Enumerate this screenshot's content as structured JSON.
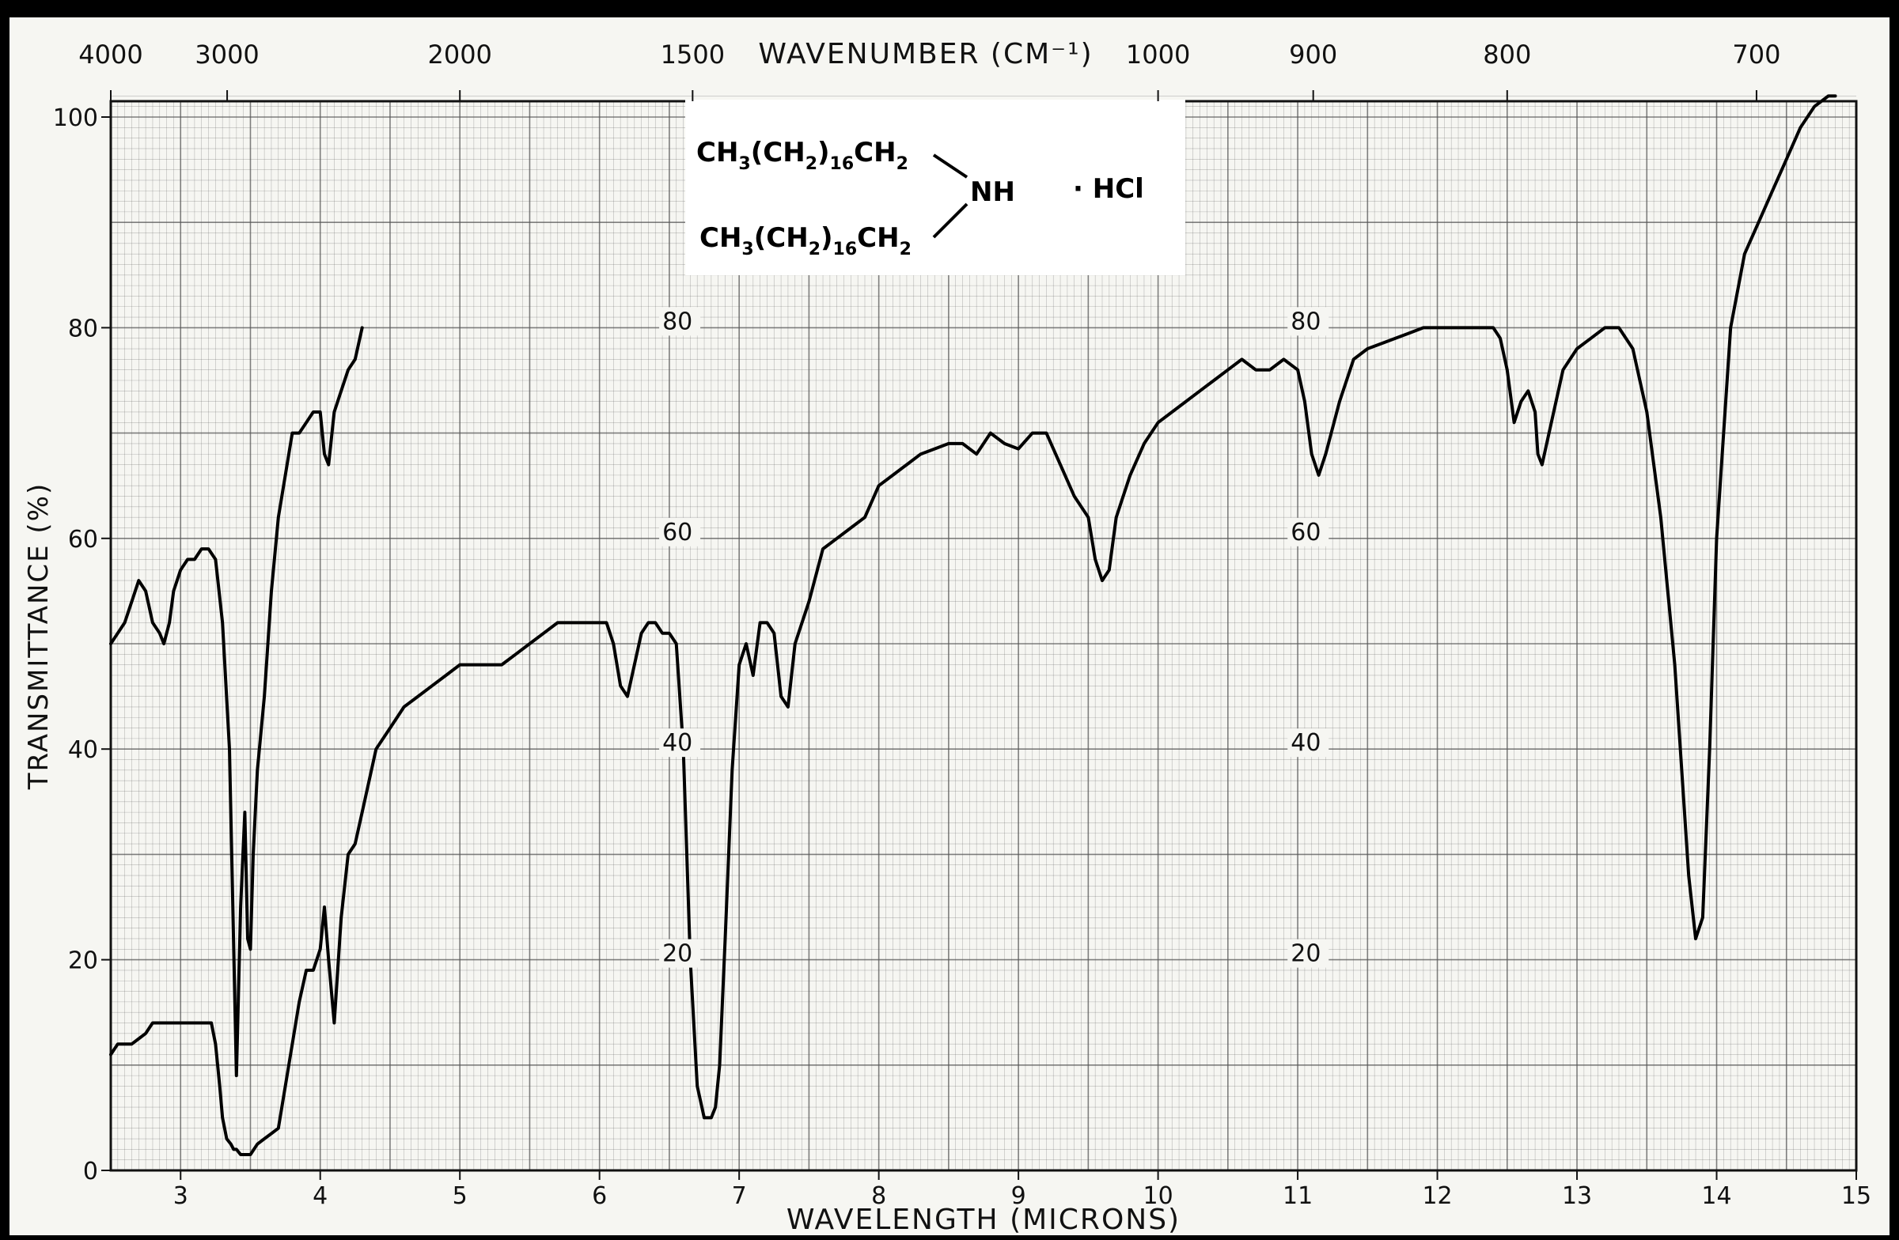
{
  "chart_data": {
    "type": "line",
    "title": "",
    "xlabel": "WAVELENGTH (MICRONS)",
    "x2label": "WAVENUMBER (CM⁻¹)",
    "ylabel": "TRANSMITTANCE (%)",
    "xlim": [
      2.5,
      15
    ],
    "ylim": [
      0,
      102
    ],
    "x_ticks": [
      3,
      4,
      5,
      6,
      7,
      8,
      9,
      10,
      11,
      12,
      13,
      14,
      15
    ],
    "x_tick_labels": [
      "3",
      "4",
      "5",
      "6",
      "7",
      "8",
      "9",
      "10",
      "11",
      "12",
      "13",
      "14",
      "15"
    ],
    "y_ticks": [
      0,
      20,
      40,
      60,
      80,
      100
    ],
    "y_tick_labels": [
      "0",
      "20",
      "40",
      "60",
      "80",
      "100"
    ],
    "wavenumber_ticks": [
      4000,
      3000,
      2000,
      1500,
      1000,
      900,
      800,
      700
    ],
    "wavenumber_tick_labels": [
      "4000",
      "3000",
      "2000",
      "1500",
      "1000",
      "900",
      "800",
      "700"
    ],
    "inner_labels": [
      {
        "x": 6.45,
        "y": 80,
        "text": "80"
      },
      {
        "x": 6.45,
        "y": 60,
        "text": "60"
      },
      {
        "x": 6.45,
        "y": 40,
        "text": "40"
      },
      {
        "x": 6.45,
        "y": 20,
        "text": "20"
      },
      {
        "x": 10.95,
        "y": 80,
        "text": "80"
      },
      {
        "x": 10.95,
        "y": 60,
        "text": "60"
      },
      {
        "x": 10.95,
        "y": 40,
        "text": "40"
      },
      {
        "x": 10.95,
        "y": 20,
        "text": "20"
      }
    ],
    "grid": true,
    "line_color": "#000000",
    "grid_color": "#555555",
    "series": [
      {
        "x": [
          2.5,
          2.55,
          2.6,
          2.65,
          2.7,
          2.75,
          2.8,
          2.85,
          2.9,
          2.95,
          3.0,
          3.05,
          3.1,
          3.15,
          3.2,
          3.22,
          3.25,
          3.28,
          3.3,
          3.33,
          3.36,
          3.38,
          3.4,
          3.43,
          3.46,
          3.5,
          3.55,
          3.6,
          3.65,
          3.7,
          3.75,
          3.8,
          3.85,
          3.9,
          3.95,
          4.0,
          4.03,
          4.06,
          4.1,
          4.15,
          4.2,
          4.25,
          4.3,
          4.35,
          4.4,
          4.5,
          4.6,
          4.7,
          4.8,
          4.9,
          5.0,
          5.1,
          5.2,
          5.3,
          5.4,
          5.5,
          5.6,
          5.7,
          5.8,
          5.9,
          6.0,
          6.05,
          6.1,
          6.15,
          6.2,
          6.25,
          6.3,
          6.35,
          6.4,
          6.45,
          6.5,
          6.55,
          6.6,
          6.65,
          6.7,
          6.75,
          6.8,
          6.83,
          6.86,
          6.9,
          6.95,
          7.0,
          7.05,
          7.1,
          7.15,
          7.2,
          7.25,
          7.3,
          7.35,
          7.4,
          7.5,
          7.6,
          7.7,
          7.8,
          7.9,
          8.0,
          8.1,
          8.2,
          8.3,
          8.4,
          8.5,
          8.6,
          8.7,
          8.8,
          8.9,
          9.0,
          9.1,
          9.2,
          9.3,
          9.4,
          9.5,
          9.55,
          9.6,
          9.65,
          9.7,
          9.8,
          9.9,
          10.0,
          10.1,
          10.2,
          10.3,
          10.4,
          10.5,
          10.6,
          10.7,
          10.8,
          10.9,
          11.0,
          11.05,
          11.1,
          11.15,
          11.2,
          11.3,
          11.4,
          11.5,
          11.6,
          11.7,
          11.8,
          11.9,
          12.0,
          12.1,
          12.2,
          12.3,
          12.4,
          12.45,
          12.5,
          12.55,
          12.6,
          12.65,
          12.7,
          12.72,
          12.75,
          12.8,
          12.9,
          13.0,
          13.1,
          13.2,
          13.3,
          13.4,
          13.5,
          13.6,
          13.7,
          13.75,
          13.8,
          13.85,
          13.9,
          13.95,
          14.0,
          14.1,
          14.2,
          14.3,
          14.4,
          14.5,
          14.6,
          14.7,
          14.8,
          14.85
        ],
        "y": [
          11,
          12,
          12,
          12,
          12.5,
          13,
          14,
          14,
          14,
          14,
          14,
          14,
          14,
          14,
          14,
          14,
          12,
          8,
          5,
          3,
          2.5,
          2,
          2,
          1.5,
          1.5,
          1.5,
          2.5,
          3,
          3.5,
          4,
          8,
          12,
          16,
          19,
          19,
          21,
          25,
          20,
          14,
          24,
          30,
          31,
          34,
          37,
          40,
          42,
          44,
          45,
          46,
          47,
          48,
          48,
          48,
          48,
          49,
          50,
          51,
          52,
          52,
          52,
          52,
          52,
          50,
          46,
          45,
          48,
          51,
          52,
          52,
          51,
          51,
          50,
          40,
          20,
          8,
          5,
          5,
          6,
          10,
          22,
          38,
          48,
          50,
          47,
          52,
          52,
          51,
          45,
          44,
          50,
          54,
          59,
          60,
          61,
          62,
          65,
          66,
          67,
          68,
          68.5,
          69,
          69,
          68,
          70,
          69,
          68.5,
          70,
          70,
          67,
          64,
          62,
          58,
          56,
          57,
          62,
          66,
          69,
          71,
          72,
          73,
          74,
          75,
          76,
          77,
          76,
          76,
          77,
          76,
          73,
          68,
          66,
          68,
          73,
          77,
          78,
          78.5,
          79,
          79.5,
          80,
          80,
          80,
          80,
          80,
          80,
          79,
          76,
          71,
          73,
          74,
          72,
          68,
          67,
          70,
          76,
          78,
          79,
          80,
          80,
          78,
          72,
          62,
          48,
          38,
          28,
          22,
          24,
          40,
          60,
          80,
          87,
          90,
          93,
          96,
          99,
          101,
          102,
          102
        ]
      },
      {
        "x": [
          2.5,
          2.55,
          2.6,
          2.65,
          2.7,
          2.75,
          2.8,
          2.85,
          2.88,
          2.92,
          2.95,
          3.0,
          3.05,
          3.1,
          3.15,
          3.2,
          3.25,
          3.3,
          3.35,
          3.4,
          3.43,
          3.46,
          3.48,
          3.5,
          3.52,
          3.55,
          3.6,
          3.65,
          3.7,
          3.75,
          3.8,
          3.85,
          3.9,
          3.95,
          4.0,
          4.03,
          4.06,
          4.1,
          4.15,
          4.2,
          4.25,
          4.3
        ],
        "y": [
          50,
          51,
          52,
          54,
          56,
          55,
          52,
          51,
          50,
          52,
          55,
          57,
          58,
          58,
          59,
          59,
          58,
          52,
          40,
          9,
          25,
          34,
          22,
          21,
          30,
          38,
          45,
          55,
          62,
          66,
          70,
          70,
          71,
          72,
          72,
          68,
          67,
          72,
          74,
          76,
          77,
          80
        ]
      }
    ]
  },
  "inset": {
    "line1_a": "CH",
    "line1_b": "3",
    "line1_c": "(CH",
    "line1_d": "2",
    "line1_e": ")",
    "line1_f": "16",
    "line1_g": "CH",
    "line1_h": "2",
    "line2_a": "CH",
    "line2_b": "3",
    "line2_c": "(CH",
    "line2_d": "2",
    "line2_e": ")",
    "line2_f": "16",
    "line2_g": "CH",
    "line2_h": "2",
    "nh": "NH",
    "salt": "· HCl"
  }
}
